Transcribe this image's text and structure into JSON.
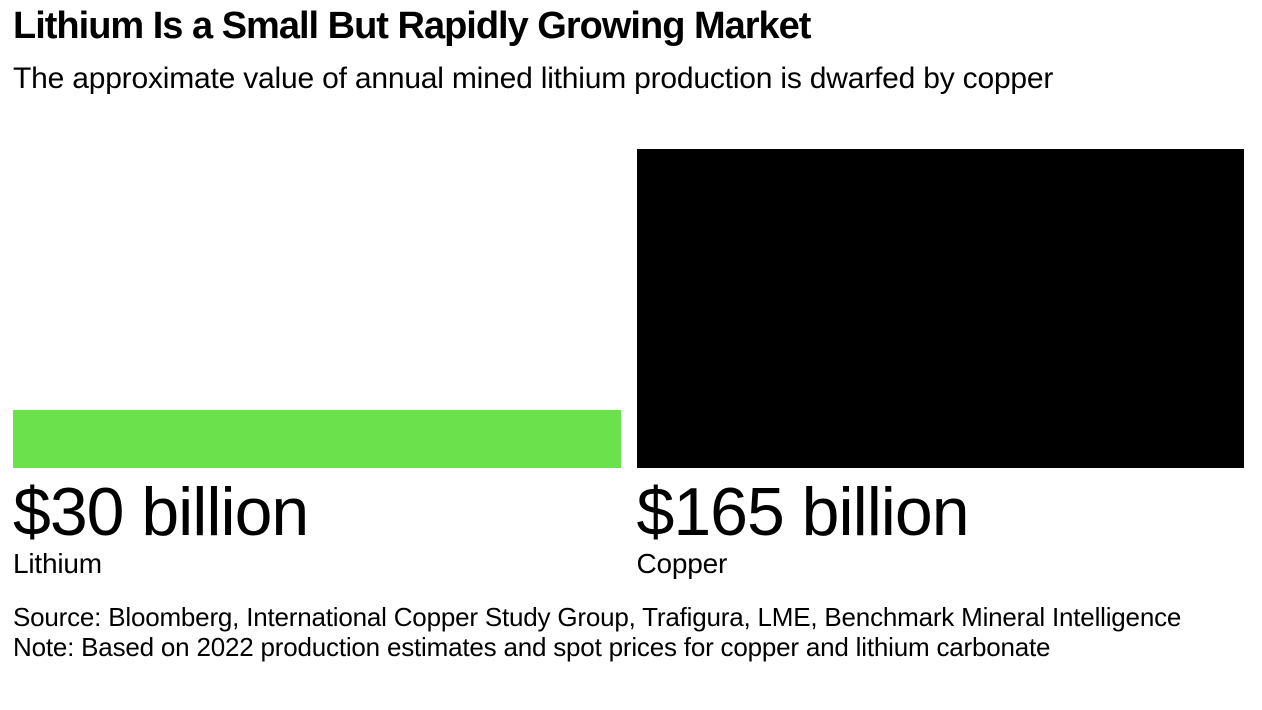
{
  "header": {
    "title": "Lithium Is a Small But Rapidly Growing Market",
    "subtitle": "The approximate value of annual mined lithium production is dwarfed by copper"
  },
  "chart_data": {
    "type": "bar",
    "title": "Lithium Is a Small But Rapidly Growing Market",
    "subtitle": "The approximate value of annual mined lithium production is dwarfed by copper",
    "categories": [
      "Lithium",
      "Copper"
    ],
    "values": [
      30,
      165
    ],
    "value_labels": [
      "$30 billion",
      "$165 billion"
    ],
    "colors": [
      "#6be24b",
      "#000000"
    ],
    "ylim": [
      0,
      165
    ],
    "xlabel": "",
    "ylabel": "",
    "grid": false,
    "legend": "none",
    "orientation": "vertical"
  },
  "footer": {
    "source": "Source: Bloomberg, International Copper Study Group, Trafigura, LME, Benchmark Mineral Intelligence",
    "note": "Note: Based on 2022 production estimates and spot prices for copper and lithium carbonate"
  }
}
